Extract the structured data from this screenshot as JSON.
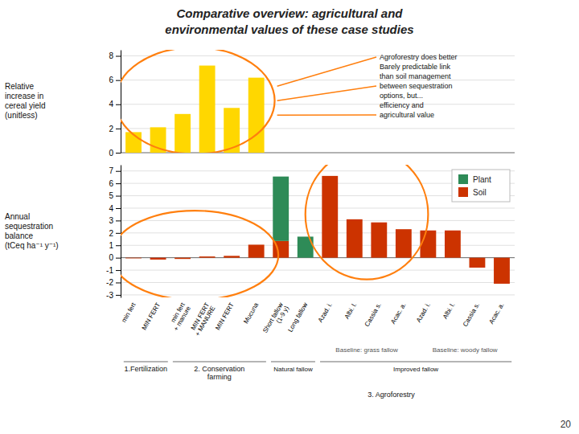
{
  "chart_data": [
    {
      "type": "bar",
      "title": "Comparative overview:  agricultural and\nenvironmental values of these case studies",
      "ylabel": "Relative\nincrease in\ncereal yield\n(unitless)",
      "categories": [
        "min fert",
        "MIN FERT",
        "min fert\n+ manure",
        "MIN FERT\n+ MANURE",
        "MIN FERT",
        "Mucuna",
        "Short fallow\n(1-9 y)",
        "Long fallow",
        "Azad. i.",
        "Albi. l.",
        "Cassia s.",
        "Acac. a.",
        "Azad. i.",
        "Albi. l.",
        "Cassia s.",
        "Acac. a."
      ],
      "values": [
        1.7,
        2.1,
        3.2,
        7.2,
        3.7,
        6.2,
        null,
        null,
        null,
        null,
        null,
        null,
        null,
        null,
        null,
        null
      ],
      "color": "#FFD700",
      "ylim": [
        0,
        8.5
      ],
      "yticks": [
        0,
        2,
        4,
        6,
        8
      ],
      "grid": true,
      "tick_labels": "y",
      "annotations": [
        "Agroforestry does better\nBarely predictable link\nthan soil management\nbetween sequestration\noptions, but...\nefficiency and\nagricultural value"
      ]
    },
    {
      "type": "bar",
      "stacked": true,
      "ylabel": "Annual\nsequestration\nbalance\n(tCeq ha⁻¹ y⁻¹)",
      "categories": [
        "min fert",
        "MIN FERT",
        "min fert\n+ manure",
        "MIN FERT\n+ MANURE",
        "MIN FERT",
        "Mucuna",
        "Short fallow\n(1-9 y)",
        "Long fallow",
        "Azad. i.",
        "Albi. l.",
        "Cassia s.",
        "Acac. a.",
        "Azad. i.",
        "Albi. l.",
        "Cassia s.",
        "Acac. a."
      ],
      "series": [
        {
          "name": "Plant",
          "color": "#2E8B57",
          "values": [
            0.0,
            0.0,
            0.0,
            0.0,
            0.0,
            0.0,
            5.2,
            1.7,
            0.0,
            0.0,
            0.0,
            0.0,
            0.0,
            0.0,
            0.0,
            0.0
          ]
        },
        {
          "name": "Soil",
          "color": "#CC3300",
          "values": [
            -0.05,
            -0.15,
            -0.1,
            0.1,
            0.15,
            1.05,
            1.35,
            0.0,
            6.6,
            3.1,
            2.85,
            2.3,
            2.2,
            2.2,
            -0.8,
            -2.1
          ]
        }
      ],
      "ylim": [
        -3.2,
        7.5
      ],
      "yticks": [
        -3,
        -2,
        -1,
        0,
        1,
        2,
        3,
        4,
        5,
        6,
        7
      ],
      "grid": true,
      "legend": "upper right",
      "annotations": [
        "1.Fertilization",
        "2. Conservation\nfarming",
        "Natural fallow",
        "Improved fallow",
        "3. Agroforestry",
        "Baseline: grass fallow",
        "Baseline: woody fallow",
        "20"
      ]
    }
  ]
}
